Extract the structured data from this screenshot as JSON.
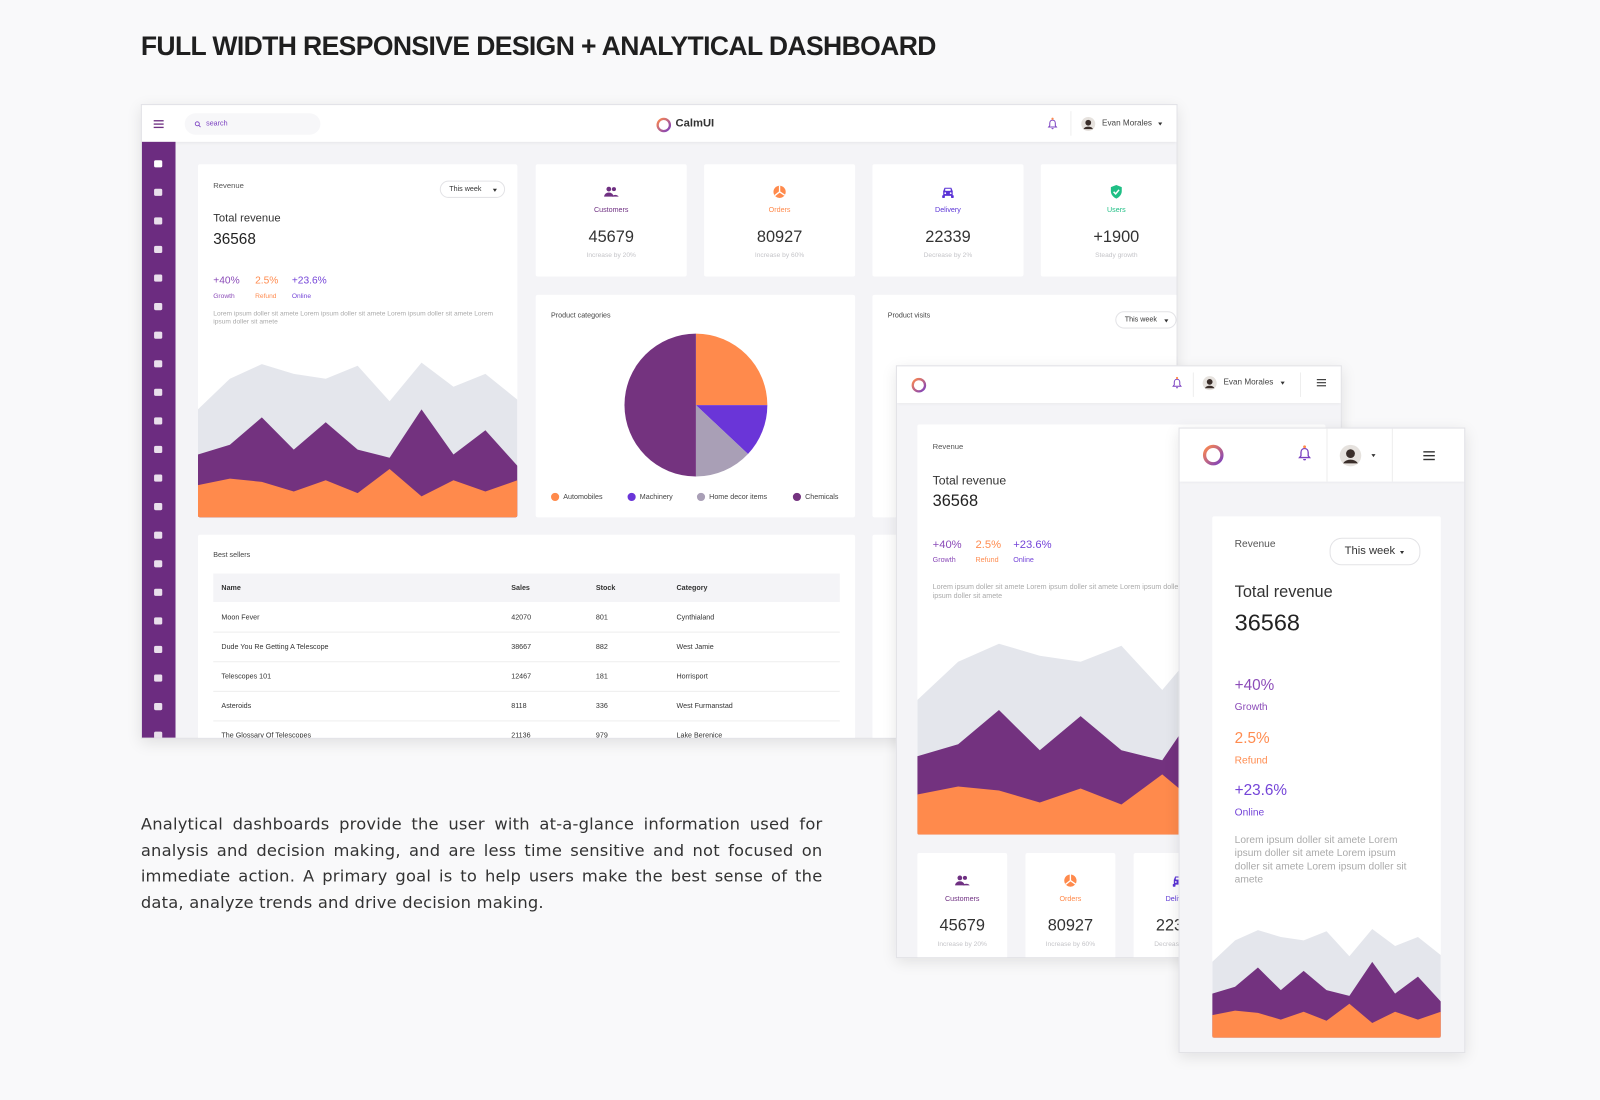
{
  "header": {
    "title": "FULL WIDTH RESPONSIVE DESIGN + ANALYTICAL DASHBOARD"
  },
  "description": "Analytical dashboards provide the user with at-a-glance information used for analysis and decision making, and are less time sensitive and not focused on immediate action. A primary goal is to help users make the best sense of the data, analyze trends and drive decision making.",
  "app": {
    "brand": "CalmUI",
    "search": "search",
    "user": "Evan Morales"
  },
  "revenue": {
    "label": "Revenue",
    "period": "This week",
    "title": "Total revenue",
    "value": "36568",
    "stats": [
      {
        "value": "+40%",
        "label": "Growth",
        "color": "#8b4bb8"
      },
      {
        "value": "2.5%",
        "label": "Refund",
        "color": "#ff8c50"
      },
      {
        "value": "+23.6%",
        "label": "Online",
        "color": "#7444d8"
      }
    ],
    "text": "Lorem ipsum doller sit amete Lorem ipsum doller sit amete Lorem ipsum doller sit amete Lorem ipsum doller sit amete",
    "chart": {
      "type": "area",
      "ylim": [
        0,
        100
      ],
      "series": [
        {
          "color": "#e4e6ec",
          "values": [
            67,
            86,
            95,
            89,
            86,
            94,
            72,
            96,
            81,
            89,
            73
          ]
        },
        {
          "color": "#73327f",
          "values": [
            39,
            45,
            62,
            42,
            59,
            42,
            37,
            67,
            39,
            54,
            32
          ]
        },
        {
          "color": "#ff8a4c",
          "values": [
            20,
            24,
            22,
            16,
            23,
            15,
            30,
            13,
            23,
            16,
            23
          ]
        }
      ]
    }
  },
  "kpis": [
    {
      "label": "Customers",
      "value": "45679",
      "note": "Increase by 20%",
      "color": "#6f3082"
    },
    {
      "label": "Orders",
      "value": "80927",
      "note": "Increase by 60%",
      "color": "#ff8a4c"
    },
    {
      "label": "Delivery",
      "value": "22339",
      "note": "Decrease by 2%",
      "color": "#5b34d6"
    },
    {
      "label": "Users",
      "value": "+1900",
      "note": "Steady growth",
      "color": "#1fbf85"
    }
  ],
  "categories": {
    "title": "Product categories",
    "type": "pie",
    "items": [
      {
        "name": "Automobiles",
        "value": 25,
        "color": "#ff8a4c"
      },
      {
        "name": "Machinery",
        "value": 12,
        "color": "#6a35d8"
      },
      {
        "name": "Home decor items",
        "value": 13,
        "color": "#a99fb6"
      },
      {
        "name": "Chemicals",
        "value": 50,
        "color": "#74337f"
      }
    ]
  },
  "visits": {
    "title": "Product visits",
    "period": "This week"
  },
  "bestsellers": {
    "title": "Best sellers",
    "columns": [
      "Name",
      "Sales",
      "Stock",
      "Category"
    ],
    "rows": [
      [
        "Moon Fever",
        "42070",
        "801",
        "Cynthialand"
      ],
      [
        "Dude You Re Getting A Telescope",
        "38667",
        "882",
        "West Jamie"
      ],
      [
        "Telescopes 101",
        "12467",
        "181",
        "Horrisport"
      ],
      [
        "Asteroids",
        "8118",
        "336",
        "West Furmanstad"
      ],
      [
        "The Glossary Of Telescopes",
        "21136",
        "979",
        "Lake Berenice"
      ]
    ]
  }
}
